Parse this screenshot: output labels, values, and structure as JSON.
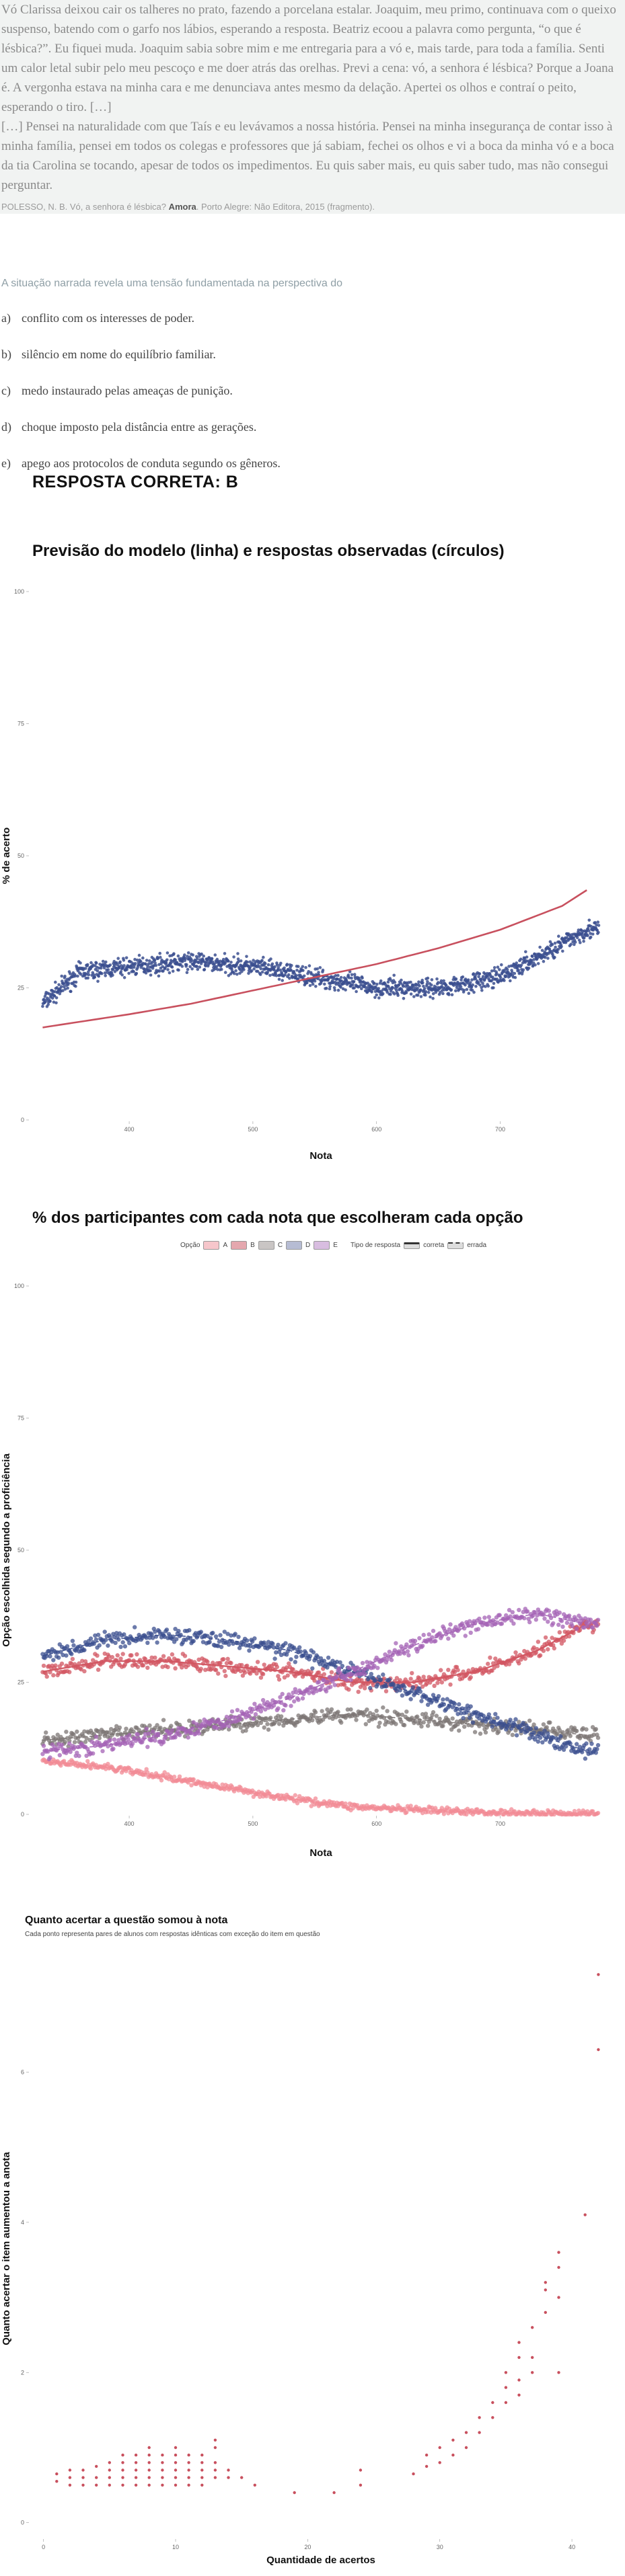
{
  "passage": {
    "paragraph1": "Vó Clarissa deixou cair os talheres no prato, fazendo a porcelana estalar. Joaquim, meu primo, continuava com o queixo suspenso, batendo com o garfo nos lábios, esperando a resposta. Beatriz ecoou a palavra como pergunta, “o que é lésbica?”. Eu fiquei muda. Joaquim sabia sobre mim e me entregaria para a vó e, mais tarde, para toda a família. Senti um calor letal subir pelo meu pescoço e me doer atrás das orelhas. Previ a cena: vó, a senhora é lésbica? Porque a Joana é. A vergonha estava na minha cara e me denunciava antes mesmo da delação. Apertei os olhos e contraí o peito, esperando o tiro. […]",
    "paragraph2": "[…] Pensei na naturalidade com que Taís e eu levávamos a nossa história. Pensei na minha insegurança de contar isso à minha família, pensei em todos os colegas e professores que já sabiam, fechei os olhos e vi a boca da minha vó e a boca da tia Carolina se tocando, apesar de todos os impedimentos. Eu quis saber mais, eu quis saber tudo, mas não consegui perguntar.",
    "source_pre": "POLESSO, N. B. Vó, a senhora é lésbica? ",
    "source_book": "Amora",
    "source_post": ". Porto Alegre: Não Editora, 2015 (fragmento)."
  },
  "question": {
    "prompt": "A situação narrada revela uma tensão fundamentada na perspectiva do",
    "options": [
      {
        "letter": "a)",
        "text": "conflito com os interesses de poder."
      },
      {
        "letter": "b)",
        "text": "silêncio em nome do equilíbrio familiar."
      },
      {
        "letter": "c)",
        "text": "medo instaurado pelas ameaças de punição."
      },
      {
        "letter": "d)",
        "text": "choque imposto pela distância entre as gerações."
      },
      {
        "letter": "e)",
        "text": "apego aos protocolos de conduta segundo os gêneros."
      }
    ],
    "answer": "RESPOSTA CORRETA: B"
  },
  "chart_data": [
    {
      "type": "scatter",
      "title": "Previsão do modelo (linha) e respostas observadas (círculos)",
      "xlabel": "Nota",
      "ylabel": "% de acerto",
      "xlim": [
        320,
        790
      ],
      "ylim": [
        0,
        100
      ],
      "xticks": [
        400,
        500,
        600,
        700
      ],
      "yticks": [
        0,
        25,
        50,
        75,
        100
      ],
      "point_color": "#3b4f8f",
      "line_color": "#c8505e",
      "observed_trend": {
        "x": [
          330,
          360,
          400,
          450,
          500,
          550,
          600,
          650,
          700,
          740,
          770
        ],
        "y": [
          22,
          28,
          29,
          30,
          29,
          27,
          25,
          25,
          27,
          32,
          36
        ]
      },
      "model_line": {
        "x": [
          330,
          400,
          450,
          500,
          550,
          600,
          650,
          700,
          750,
          770
        ],
        "y": [
          17.5,
          20,
          22,
          24.5,
          27,
          29.5,
          32.5,
          36,
          40.5,
          43.5
        ]
      }
    },
    {
      "type": "scatter",
      "title": "% dos participantes com cada nota que escolheram cada opção",
      "xlabel": "Nota",
      "ylabel": "Opção escolhida segundo a proficiência",
      "xlim": [
        320,
        790
      ],
      "ylim": [
        0,
        100
      ],
      "xticks": [
        400,
        500,
        600,
        700
      ],
      "yticks": [
        0,
        25,
        50,
        75,
        100
      ],
      "legend": {
        "title_option": "Opção",
        "options": [
          "A",
          "B",
          "C",
          "D",
          "E"
        ],
        "title_type": "Tipo de resposta",
        "types": [
          "correta",
          "errada"
        ],
        "position": "top"
      },
      "series": [
        {
          "name": "A",
          "color": "#f28b95",
          "x": [
            330,
            380,
            430,
            480,
            530,
            580,
            630,
            680,
            730,
            760
          ],
          "y": [
            10,
            9,
            7,
            5,
            3,
            1.5,
            0.8,
            0.4,
            0.2,
            0.1
          ]
        },
        {
          "name": "B",
          "color": "#d25561",
          "x": [
            330,
            380,
            430,
            480,
            530,
            580,
            630,
            680,
            730,
            770
          ],
          "y": [
            27,
            29,
            29,
            28,
            27,
            25,
            25,
            27,
            31,
            36
          ]
        },
        {
          "name": "C",
          "color": "#7c7574",
          "x": [
            330,
            380,
            430,
            480,
            530,
            580,
            630,
            680,
            730,
            770
          ],
          "y": [
            14,
            15,
            16,
            17,
            18,
            19,
            18,
            17,
            16,
            15
          ]
        },
        {
          "name": "D",
          "color": "#3b4f8f",
          "x": [
            330,
            380,
            430,
            480,
            530,
            580,
            630,
            680,
            730,
            770
          ],
          "y": [
            30,
            33,
            34,
            33,
            31,
            27,
            23,
            19,
            15,
            12
          ]
        },
        {
          "name": "E",
          "color": "#a463b5",
          "x": [
            330,
            380,
            430,
            480,
            530,
            580,
            630,
            680,
            730,
            770
          ],
          "y": [
            12,
            13,
            15,
            18,
            22,
            27,
            32,
            36,
            38,
            36
          ]
        }
      ]
    },
    {
      "type": "scatter",
      "title": "Quanto acertar a questão somou à nota",
      "subtitle": "Cada ponto representa pares de alunos com respostas idênticas com exceção do item em questão",
      "xlabel": "Quantidade de acertos",
      "ylabel": "Quanto acertar o item aumentou a anota",
      "xlim": [
        -1,
        43
      ],
      "ylim": [
        -0.2,
        7.5
      ],
      "xticks": [
        0,
        10,
        20,
        30,
        40
      ],
      "yticks": [
        0,
        2,
        4,
        6
      ],
      "point_color": "#c8505e",
      "points": [
        {
          "x": 1,
          "y": 0.55
        },
        {
          "x": 1,
          "y": 0.65
        },
        {
          "x": 2,
          "y": 0.5
        },
        {
          "x": 2,
          "y": 0.6
        },
        {
          "x": 2,
          "y": 0.7
        },
        {
          "x": 3,
          "y": 0.5
        },
        {
          "x": 3,
          "y": 0.6
        },
        {
          "x": 3,
          "y": 0.7
        },
        {
          "x": 4,
          "y": 0.5
        },
        {
          "x": 4,
          "y": 0.6
        },
        {
          "x": 4,
          "y": 0.75
        },
        {
          "x": 5,
          "y": 0.5
        },
        {
          "x": 5,
          "y": 0.6
        },
        {
          "x": 5,
          "y": 0.7
        },
        {
          "x": 5,
          "y": 0.8
        },
        {
          "x": 6,
          "y": 0.5
        },
        {
          "x": 6,
          "y": 0.6
        },
        {
          "x": 6,
          "y": 0.7
        },
        {
          "x": 6,
          "y": 0.8
        },
        {
          "x": 6,
          "y": 0.9
        },
        {
          "x": 7,
          "y": 0.5
        },
        {
          "x": 7,
          "y": 0.6
        },
        {
          "x": 7,
          "y": 0.7
        },
        {
          "x": 7,
          "y": 0.8
        },
        {
          "x": 7,
          "y": 0.9
        },
        {
          "x": 8,
          "y": 0.5
        },
        {
          "x": 8,
          "y": 0.6
        },
        {
          "x": 8,
          "y": 0.7
        },
        {
          "x": 8,
          "y": 0.8
        },
        {
          "x": 8,
          "y": 0.9
        },
        {
          "x": 8,
          "y": 1.0
        },
        {
          "x": 9,
          "y": 0.5
        },
        {
          "x": 9,
          "y": 0.6
        },
        {
          "x": 9,
          "y": 0.7
        },
        {
          "x": 9,
          "y": 0.8
        },
        {
          "x": 9,
          "y": 0.9
        },
        {
          "x": 10,
          "y": 0.5
        },
        {
          "x": 10,
          "y": 0.6
        },
        {
          "x": 10,
          "y": 0.7
        },
        {
          "x": 10,
          "y": 0.8
        },
        {
          "x": 10,
          "y": 0.9
        },
        {
          "x": 10,
          "y": 1.0
        },
        {
          "x": 11,
          "y": 0.5
        },
        {
          "x": 11,
          "y": 0.6
        },
        {
          "x": 11,
          "y": 0.7
        },
        {
          "x": 11,
          "y": 0.8
        },
        {
          "x": 11,
          "y": 0.9
        },
        {
          "x": 12,
          "y": 0.5
        },
        {
          "x": 12,
          "y": 0.6
        },
        {
          "x": 12,
          "y": 0.7
        },
        {
          "x": 12,
          "y": 0.8
        },
        {
          "x": 12,
          "y": 0.9
        },
        {
          "x": 13,
          "y": 0.6
        },
        {
          "x": 13,
          "y": 0.7
        },
        {
          "x": 13,
          "y": 0.8
        },
        {
          "x": 13,
          "y": 1.0
        },
        {
          "x": 13,
          "y": 1.1
        },
        {
          "x": 14,
          "y": 0.6
        },
        {
          "x": 14,
          "y": 0.7
        },
        {
          "x": 15,
          "y": 0.6
        },
        {
          "x": 16,
          "y": 0.5
        },
        {
          "x": 19,
          "y": 0.4
        },
        {
          "x": 22,
          "y": 0.4
        },
        {
          "x": 24,
          "y": 0.5
        },
        {
          "x": 24,
          "y": 0.7
        },
        {
          "x": 28,
          "y": 0.65
        },
        {
          "x": 29,
          "y": 0.75
        },
        {
          "x": 29,
          "y": 0.9
        },
        {
          "x": 30,
          "y": 0.8
        },
        {
          "x": 30,
          "y": 1.0
        },
        {
          "x": 31,
          "y": 0.9
        },
        {
          "x": 31,
          "y": 1.1
        },
        {
          "x": 32,
          "y": 1.0
        },
        {
          "x": 32,
          "y": 1.2
        },
        {
          "x": 33,
          "y": 1.2
        },
        {
          "x": 33,
          "y": 1.4
        },
        {
          "x": 34,
          "y": 1.4
        },
        {
          "x": 34,
          "y": 1.6
        },
        {
          "x": 35,
          "y": 1.6
        },
        {
          "x": 35,
          "y": 1.8
        },
        {
          "x": 35,
          "y": 2.0
        },
        {
          "x": 36,
          "y": 1.7
        },
        {
          "x": 36,
          "y": 1.9
        },
        {
          "x": 36,
          "y": 2.2
        },
        {
          "x": 36,
          "y": 2.4
        },
        {
          "x": 37,
          "y": 2.0
        },
        {
          "x": 37,
          "y": 2.2
        },
        {
          "x": 37,
          "y": 2.6
        },
        {
          "x": 38,
          "y": 2.8
        },
        {
          "x": 38,
          "y": 3.1
        },
        {
          "x": 38,
          "y": 3.2
        },
        {
          "x": 39,
          "y": 3.0
        },
        {
          "x": 39,
          "y": 3.4
        },
        {
          "x": 39,
          "y": 3.6
        },
        {
          "x": 39,
          "y": 2.0
        },
        {
          "x": 41,
          "y": 4.1
        },
        {
          "x": 42,
          "y": 6.3
        },
        {
          "x": 42,
          "y": 7.3
        }
      ]
    }
  ]
}
